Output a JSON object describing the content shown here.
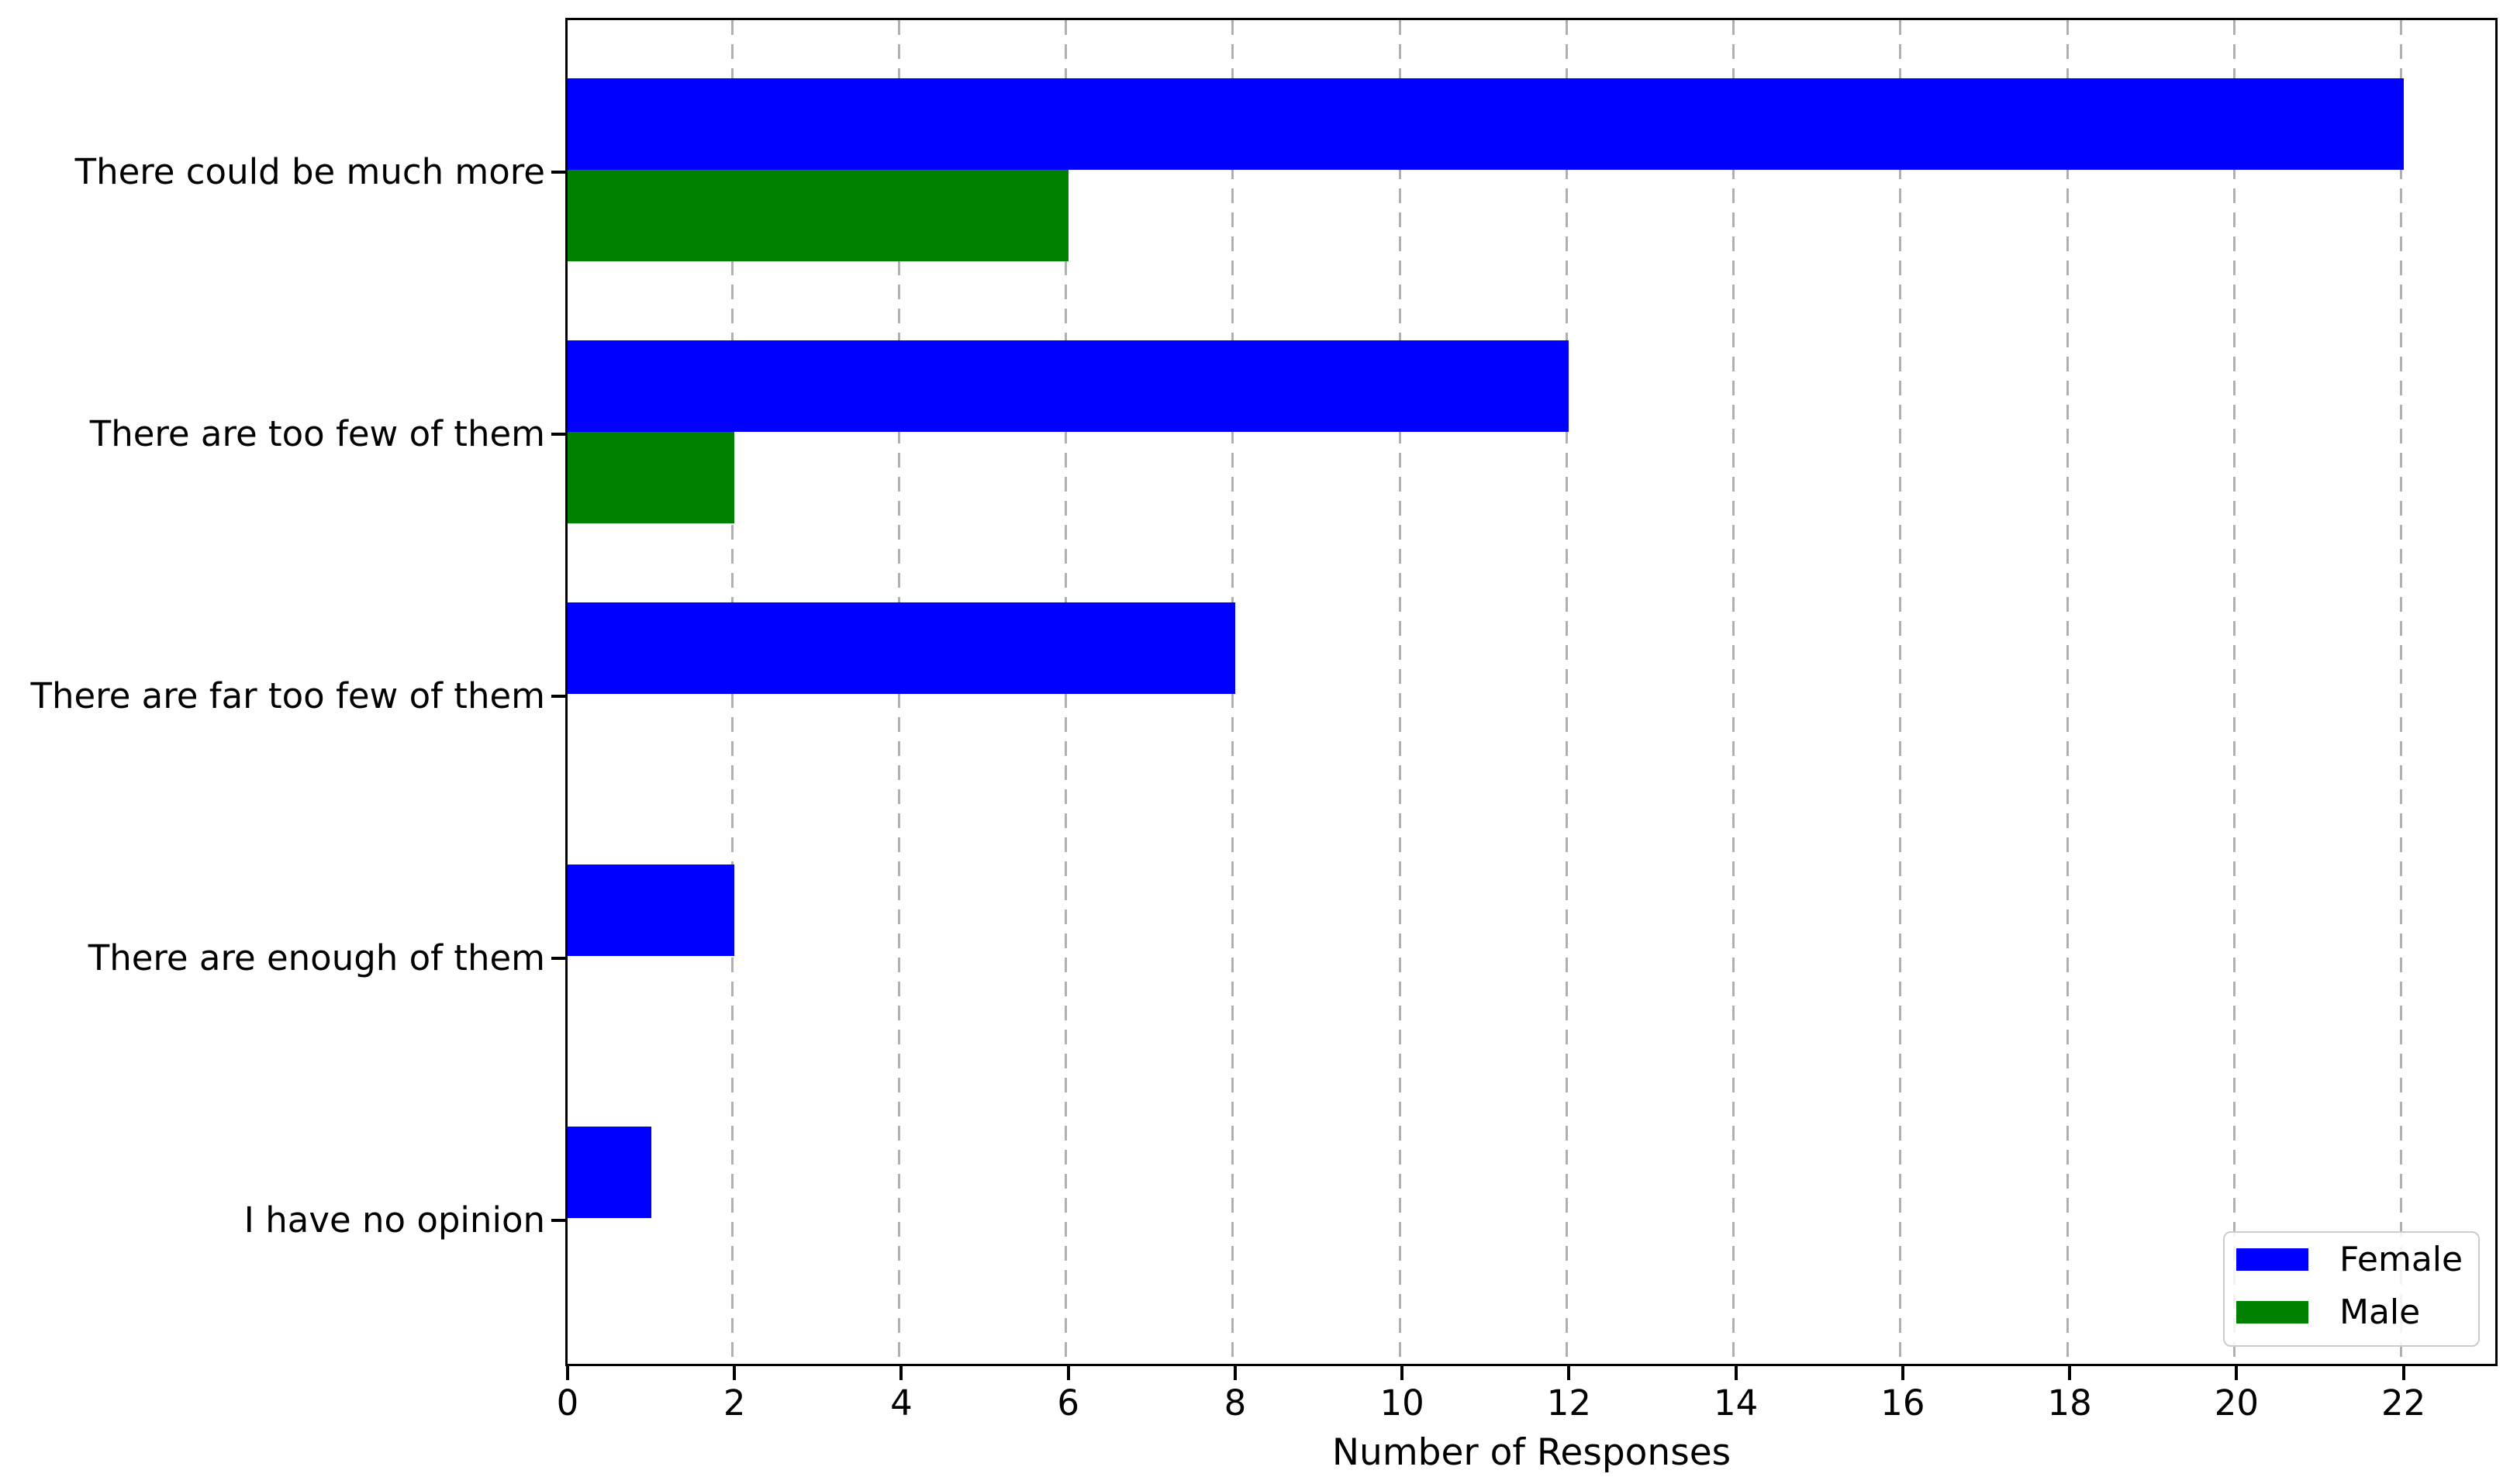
{
  "chart_data": {
    "type": "bar",
    "orientation": "horizontal",
    "title": "",
    "xlabel": "Number of Responses",
    "ylabel": "",
    "categories": [
      "There could be much more",
      "There are too few of them",
      "There are far too few of them",
      "There are enough of them",
      "I have no opinion"
    ],
    "series": [
      {
        "name": "Female",
        "color": "#0000ff",
        "values": [
          22,
          12,
          8,
          2,
          1
        ]
      },
      {
        "name": "Male",
        "color": "#008000",
        "values": [
          6,
          2,
          0,
          0,
          0
        ]
      }
    ],
    "x_ticks": [
      0,
      2,
      4,
      6,
      8,
      10,
      12,
      14,
      16,
      18,
      20,
      22
    ],
    "xlim": [
      0,
      23.1
    ],
    "grid": "vertical dashed",
    "grid_color": "#b0b0b0",
    "spine_color": "#000000",
    "legend_position": "lower right",
    "legend_border_color": "#cccccc"
  }
}
